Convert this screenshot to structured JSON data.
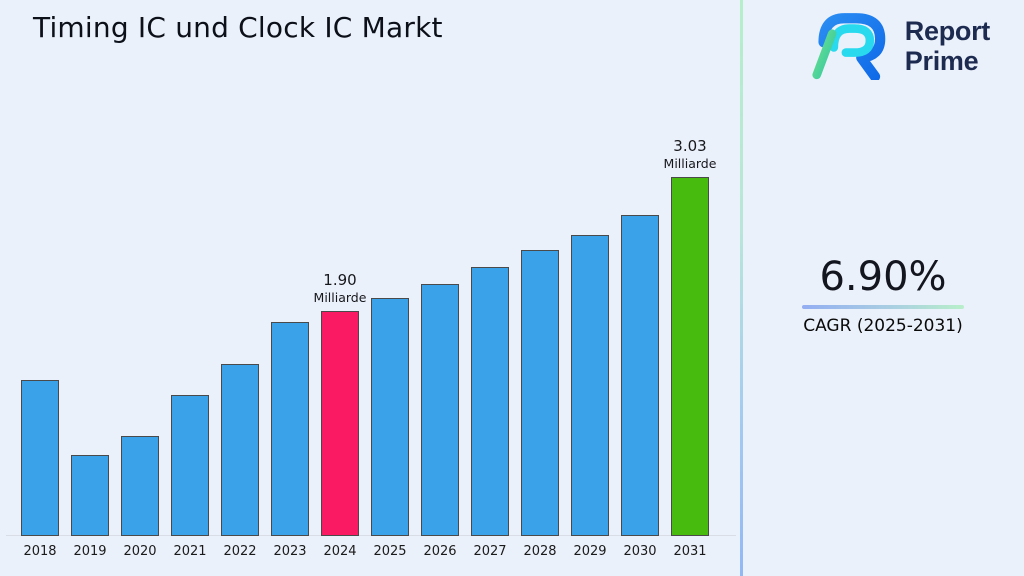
{
  "title": "Timing IC und Clock IC Markt",
  "logo": {
    "line1": "Report",
    "line2": "Prime",
    "navy": "#1d2b50",
    "blue": "#1377f0",
    "cyan": "#29d9ee",
    "green_light": "#6ee08a",
    "green_teal": "#2fc7a6"
  },
  "stats": {
    "value": "6.90%",
    "label": "CAGR (2025-2031)"
  },
  "colors": {
    "background": "#ebf1fb",
    "bar_blue": "#3aa2e8",
    "bar_pink": "#f91a63",
    "bar_green": "#47bb0e",
    "bar_border": "#4a4a4a",
    "axis_line": "#d9dde6",
    "divider_top": "#b4efc9",
    "divider_bottom": "#92b8f4",
    "underline_left": "#93aef2",
    "underline_right": "#b9efca"
  },
  "chart_data": {
    "type": "bar",
    "title": "Timing IC und Clock IC Markt",
    "unit": "Milliarde",
    "xlabel": "",
    "ylabel": "",
    "ylim": [
      0,
      3.4
    ],
    "grid": false,
    "legend": false,
    "categories": [
      "2018",
      "2019",
      "2020",
      "2021",
      "2022",
      "2023",
      "2024",
      "2025",
      "2026",
      "2027",
      "2028",
      "2029",
      "2030",
      "2031"
    ],
    "values": [
      1.32,
      0.68,
      0.84,
      1.19,
      1.45,
      1.81,
      1.9,
      2.01,
      2.13,
      2.27,
      2.41,
      2.54,
      2.71,
      3.03
    ],
    "bar_colors": {
      "default": "#3aa2e8",
      "2024": "#f91a63",
      "2031": "#47bb0e"
    },
    "annotations": [
      {
        "category": "2024",
        "value": "1.90",
        "unit": "Milliarde"
      },
      {
        "category": "2031",
        "value": "3.03",
        "unit": "Milliarde"
      }
    ]
  }
}
